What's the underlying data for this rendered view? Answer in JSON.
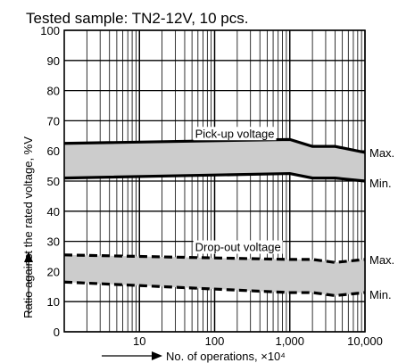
{
  "chart_data": {
    "type": "area",
    "title": "Tested sample: TN2-12V, 10 pcs.",
    "xlabel": "No. of operations, ×10⁴",
    "ylabel": "Ratio against the rated voltage, %V",
    "x_scale": "log",
    "xlim": [
      1,
      10000
    ],
    "ylim": [
      0,
      100
    ],
    "x_tick_labels": [
      {
        "value": 10,
        "label": "10"
      },
      {
        "value": 100,
        "label": "100"
      },
      {
        "value": 1000,
        "label": "1,000"
      },
      {
        "value": 10000,
        "label": "10,000"
      }
    ],
    "y_ticks": [
      0,
      10,
      20,
      30,
      40,
      50,
      60,
      70,
      80,
      90,
      100
    ],
    "grid": true,
    "bands": [
      {
        "name": "Pick-up voltage",
        "style": "solid",
        "max_label": "Max.",
        "min_label": "Min.",
        "x": [
          1,
          1000,
          2000,
          4000,
          10000
        ],
        "max": [
          62.5,
          63.8,
          61.5,
          61.5,
          59.5
        ],
        "min": [
          51,
          52.5,
          51,
          51,
          50
        ]
      },
      {
        "name": "Drop-out voltage",
        "style": "dashed",
        "max_label": "Max.",
        "min_label": "Min.",
        "x": [
          1,
          1000,
          2000,
          4000,
          10000
        ],
        "max": [
          25.5,
          24,
          24,
          23,
          24
        ],
        "min": [
          16.5,
          13,
          13,
          12,
          13
        ]
      }
    ]
  }
}
